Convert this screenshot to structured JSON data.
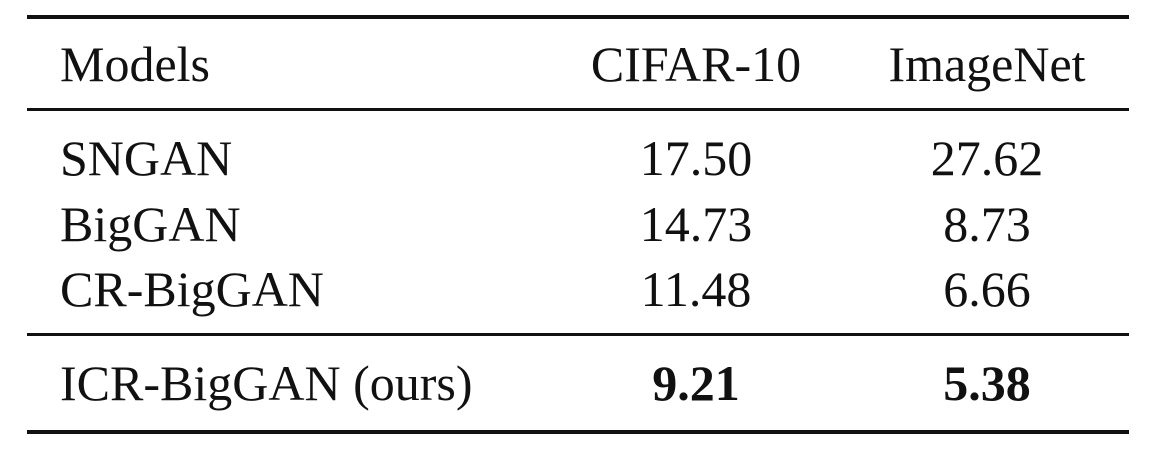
{
  "table": {
    "headers": [
      "Models",
      "CIFAR-10",
      "ImageNet"
    ],
    "rows": [
      {
        "model": "SNGAN",
        "cifar10": "17.50",
        "imagenet": "27.62"
      },
      {
        "model": "BigGAN",
        "cifar10": "14.73",
        "imagenet": "8.73"
      },
      {
        "model": "CR-BigGAN",
        "cifar10": "11.48",
        "imagenet": "6.66"
      }
    ],
    "highlight_row": {
      "model": "ICR-BigGAN (ours)",
      "cifar10": "9.21",
      "imagenet": "5.38"
    }
  }
}
